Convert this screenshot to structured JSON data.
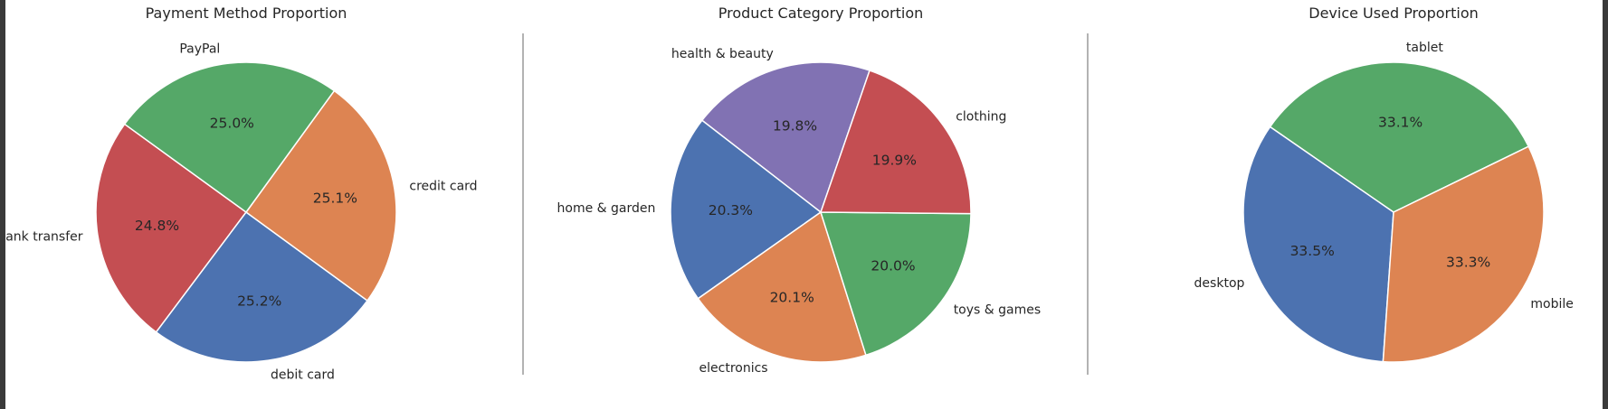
{
  "chart_data": [
    {
      "type": "pie",
      "title": "Payment Method Proportion",
      "start_angle_deg": 144,
      "labels": [
        "bank transfer",
        "debit card",
        "credit card",
        "PayPal"
      ],
      "values": [
        24.8,
        25.2,
        25.1,
        25.0
      ],
      "pct_labels": [
        "24.8%",
        "25.2%",
        "25.1%",
        "25.0%"
      ],
      "colors": [
        "#c44e52",
        "#4c72b0",
        "#dd8452",
        "#55a868"
      ]
    },
    {
      "type": "pie",
      "title": "Product Category Proportion",
      "start_angle_deg": 71,
      "labels": [
        "health & beauty",
        "home & garden",
        "electronics",
        "toys & games",
        "clothing"
      ],
      "values": [
        19.8,
        20.3,
        20.1,
        20.0,
        19.9
      ],
      "pct_labels": [
        "19.8%",
        "20.3%",
        "20.1%",
        "20.0%",
        "19.9%"
      ],
      "colors": [
        "#8172b3",
        "#4c72b0",
        "#dd8452",
        "#55a868",
        "#c44e52"
      ]
    },
    {
      "type": "pie",
      "title": "Device Used Proportion",
      "start_angle_deg": 26,
      "labels": [
        "tablet",
        "desktop",
        "mobile"
      ],
      "values": [
        33.1,
        33.5,
        33.3
      ],
      "pct_labels": [
        "33.1%",
        "33.5%",
        "33.3%"
      ],
      "colors": [
        "#55a868",
        "#4c72b0",
        "#dd8452"
      ]
    }
  ]
}
